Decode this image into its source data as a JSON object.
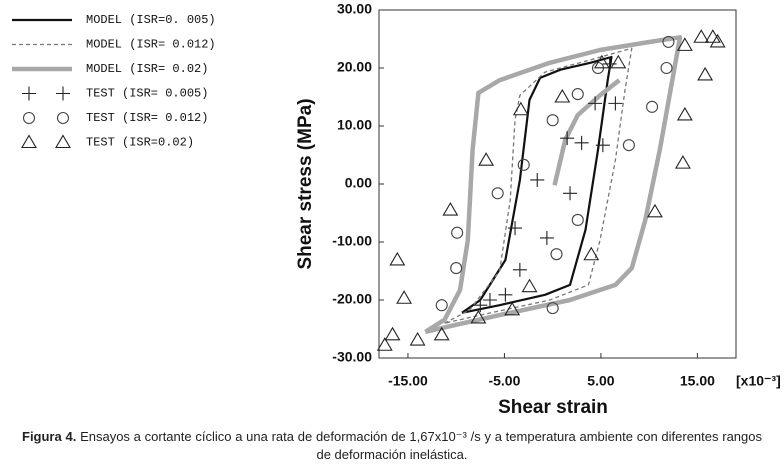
{
  "chart_data": {
    "type": "line",
    "y_label": "Shear stress (MPa)",
    "x_label": "Shear strain",
    "x_unit": "[x10⁻³]",
    "xlim": [
      -18,
      19
    ],
    "ylim": [
      -30,
      30
    ],
    "xticks": [
      {
        "value": -15,
        "label": "-15.00"
      },
      {
        "value": -5,
        "label": "-5.00"
      },
      {
        "value": 5,
        "label": "5.00"
      },
      {
        "value": 15,
        "label": "15.00"
      }
    ],
    "yticks": [
      {
        "value": 30,
        "label": "30.00"
      },
      {
        "value": 20,
        "label": "20.00"
      },
      {
        "value": 10,
        "label": "10.00"
      },
      {
        "value": 0,
        "label": "0.00"
      },
      {
        "value": -10,
        "label": "-10.00"
      },
      {
        "value": -20,
        "label": "-20.00"
      },
      {
        "value": -30,
        "label": "-30.00"
      }
    ],
    "grid": false,
    "series": [
      {
        "name": "MODEL (ISR=0. 005)",
        "color": "#111111",
        "style": "solid",
        "x": [
          -9.4,
          -7.5,
          -4.9,
          -3.4,
          -2.4,
          -1.3,
          0.8,
          3.9,
          6.1,
          5.7,
          4.7,
          3.4,
          1.8,
          -0.8,
          -5.5,
          -9.4
        ],
        "values": [
          -22.2,
          -20.0,
          -13.1,
          0.7,
          14.5,
          18.3,
          19.7,
          20.9,
          21.9,
          17.9,
          5.9,
          -7.9,
          -17.4,
          -19.1,
          -20.9,
          -22.2
        ]
      },
      {
        "name": "MODEL (ISR= 0.012)",
        "color": "#777777",
        "style": "dashed",
        "x": [
          -11.2,
          -8.6,
          -5.5,
          -4.4,
          -3.9,
          -3.4,
          -0.8,
          3.9,
          8.2,
          7.5,
          6.5,
          4.9,
          3.7,
          -0.3,
          -7.5,
          -11.2
        ],
        "values": [
          -24.0,
          -21.7,
          -15.0,
          -2.8,
          11.0,
          15.3,
          19.3,
          21.4,
          23.4,
          16.2,
          4.1,
          -9.7,
          -17.4,
          -20.0,
          -22.6,
          -24.0
        ]
      },
      {
        "name": "MODEL (ISR= 0.02)",
        "color": "#a8a8a8",
        "style": "thick",
        "x": [
          0.2,
          1.3,
          2.6,
          4.9,
          6.9,
          null,
          -13.2,
          -11.2,
          -9.6,
          -8.8,
          -8.3,
          -7.7,
          -5.5,
          -0.3,
          4.9,
          10.1,
          13.2,
          12.4,
          11.1,
          9.6,
          8.2,
          6.5,
          1.8,
          -5.5,
          -10.6,
          -13.2
        ],
        "values": [
          -0.2,
          7.6,
          11.9,
          15.3,
          17.9,
          null,
          -25.5,
          -23.4,
          -18.3,
          -9.7,
          5.9,
          15.7,
          17.9,
          20.9,
          23.1,
          24.5,
          25.3,
          17.9,
          5.9,
          -6.2,
          -14.5,
          -17.4,
          -20.0,
          -22.6,
          -24.5,
          -25.5
        ]
      },
      {
        "name": "TEST (ISR= 0.005)",
        "color": "#222222",
        "marker": "plus",
        "x": [
          -7.5,
          -6.5,
          -4.9,
          -3.4,
          -3.9,
          -0.6,
          -1.6,
          1.8,
          1.5,
          3.0,
          4.4,
          6.5,
          5.2,
          5.9
        ],
        "values": [
          -20.9,
          -20.0,
          -19.1,
          -14.8,
          -7.6,
          -9.3,
          0.7,
          -1.6,
          7.9,
          7.1,
          13.9,
          13.9,
          6.7,
          20.7
        ]
      },
      {
        "name": "TEST (ISR= 0.012)",
        "color": "#444444",
        "marker": "circle",
        "x": [
          -11.5,
          -10.0,
          -9.9,
          -5.7,
          -3.0,
          0.0,
          0.4,
          0.0,
          2.6,
          2.6,
          4.7,
          7.9,
          10.3,
          11.8,
          12.0
        ],
        "values": [
          -20.9,
          -14.5,
          -8.4,
          -1.6,
          3.3,
          11.0,
          -12.1,
          -21.4,
          -6.2,
          15.5,
          20.0,
          6.7,
          13.3,
          20.0,
          24.5
        ]
      },
      {
        "name": "TEST (ISR=0.02)",
        "color": "#222222",
        "marker": "triangle",
        "x": [
          -17.4,
          -16.6,
          -15.4,
          -16.1,
          -14.0,
          -11.5,
          -10.6,
          -7.7,
          -6.9,
          -4.2,
          -3.3,
          -2.4,
          1.0,
          4.0,
          5.1,
          6.8,
          10.6,
          13.5,
          13.7,
          15.8,
          16.6,
          17.1,
          15.4,
          13.7
        ],
        "values": [
          -27.8,
          -26.0,
          -19.7,
          -13.1,
          -26.9,
          -26.0,
          -4.5,
          -23.1,
          4.1,
          -21.7,
          12.8,
          -17.7,
          15.0,
          -12.2,
          20.9,
          20.9,
          -4.8,
          3.6,
          23.9,
          18.8,
          25.3,
          24.5,
          25.3,
          11.9
        ]
      }
    ]
  },
  "caption": {
    "label": "Figura 4.",
    "text": "Ensayos a cortante cíclico a una rata de deformación de 1,67x10⁻³ /s y a temperatura ambiente con diferentes rangos de deformación inelástica."
  }
}
